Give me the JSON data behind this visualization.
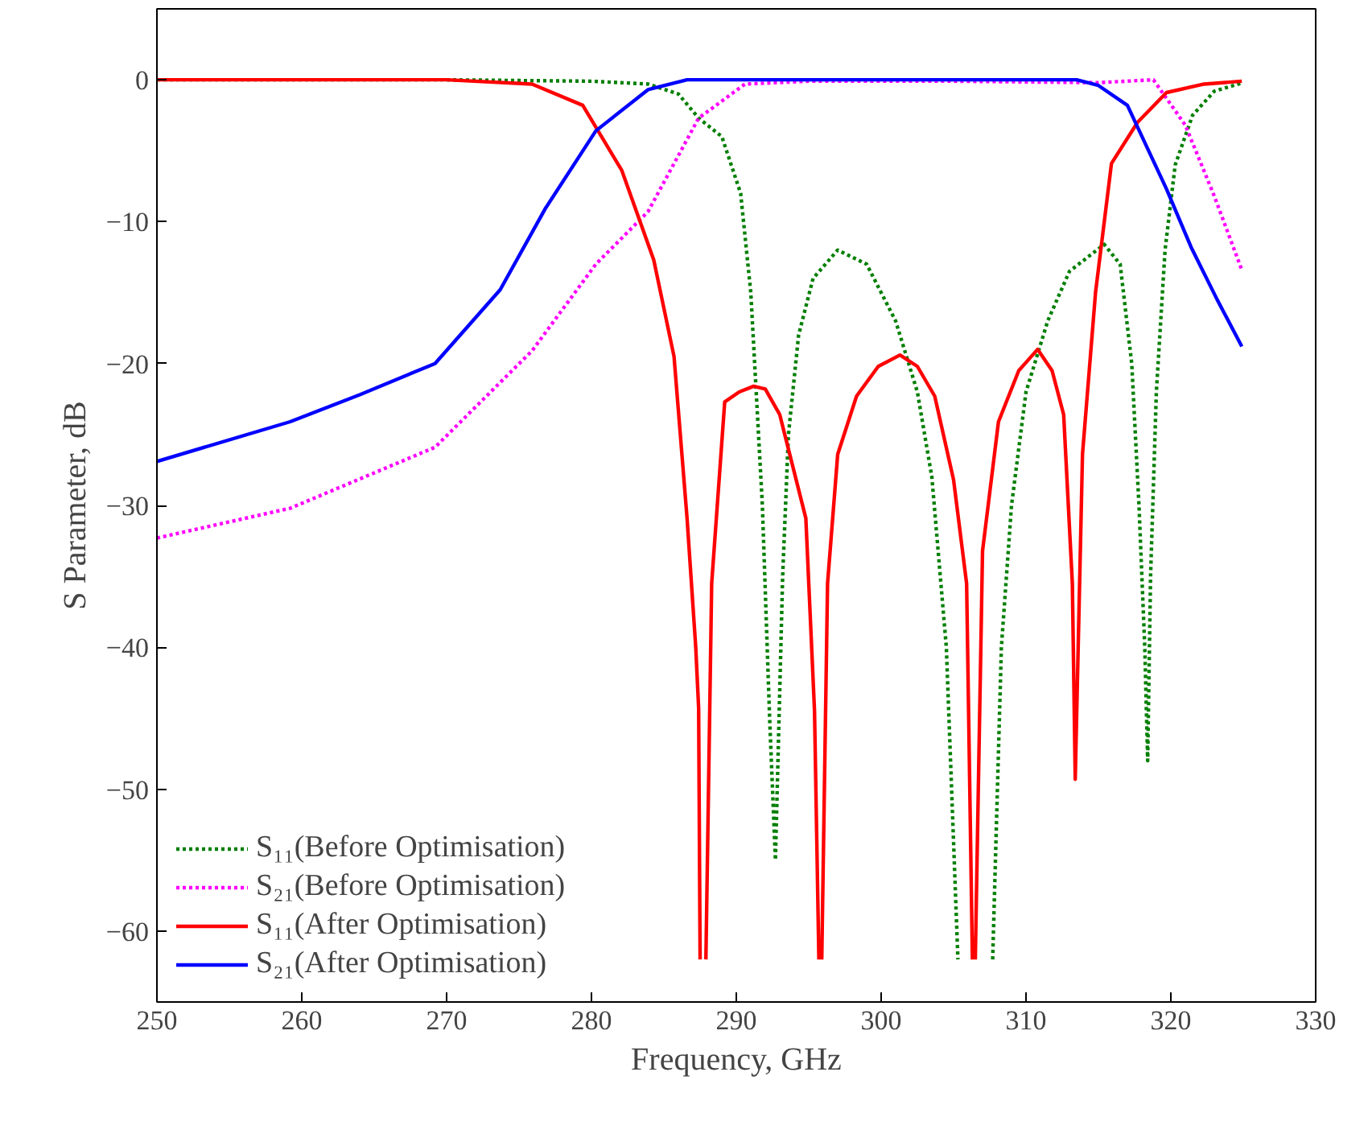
{
  "chart_data": {
    "type": "line",
    "xlabel": "Frequency, GHz",
    "ylabel": "S Parameter, dB",
    "xlim": [
      250,
      330
    ],
    "xticks": [
      250,
      260,
      270,
      280,
      290,
      300,
      310,
      320,
      330
    ],
    "ylim": [
      -65,
      5
    ],
    "yticks": [
      0,
      -10,
      -20,
      -30,
      -40,
      -50,
      -60
    ],
    "grid": false,
    "legend": "bottom left",
    "marker": "none",
    "series": [
      {
        "name": "S₁₁(Before Optimisation)",
        "color": "#007f00",
        "line_style": "dotted",
        "x": [
          250,
          270,
          280,
          283.9,
          286,
          287.4,
          289,
          290.3,
          291,
          291.8,
          292.3,
          292.7,
          293.2,
          293.6,
          294.3,
          295.3,
          297,
          299,
          301,
          302.5,
          303.5,
          304.5,
          305.3,
          306.5,
          307.7,
          308.3,
          309,
          310,
          311.5,
          313,
          315.4,
          316.5,
          317.3,
          317.8,
          318.2,
          318.4,
          318.6,
          319,
          319.6,
          320.3,
          321.5,
          323,
          325
        ],
        "values": [
          0,
          0,
          -0.1,
          -0.3,
          -1,
          -2.7,
          -4,
          -8,
          -15,
          -30,
          -45,
          -55,
          -35,
          -25,
          -18,
          -14,
          -12,
          -13,
          -17,
          -22,
          -28,
          -40,
          -62,
          null,
          -62,
          -40,
          -30,
          -22,
          -17,
          -13.5,
          -11.6,
          -13,
          -20,
          -30,
          -40,
          -48,
          -35,
          -22,
          -12,
          -6,
          -2.5,
          -0.8,
          -0.2
        ]
      },
      {
        "name": "S₂₁(Before Optimisation)",
        "color": "#ff00ff",
        "line_style": "dotted",
        "x": [
          250,
          259.2,
          269.2,
          275.9,
          280.3,
          283.9,
          287.4,
          290.6,
          295,
          305,
          315,
          318.8,
          321,
          323,
          324.9
        ],
        "values": [
          -32.3,
          -30.2,
          -25.9,
          -19.1,
          -13,
          -9.3,
          -2.7,
          -0.3,
          -0.1,
          -0.1,
          -0.2,
          0,
          -3.2,
          -8.2,
          -13.4
        ]
      },
      {
        "name": "S₁₁(After Optimisation)",
        "color": "#ff0000",
        "line_style": "solid",
        "x": [
          250,
          270,
          275.9,
          279.4,
          282.1,
          284.3,
          285.7,
          286.6,
          287.2,
          287.4,
          287.5,
          287.7,
          287.9,
          288.3,
          289.2,
          290.2,
          291.2,
          292,
          293,
          294.8,
          295.4,
          295.7,
          295.8,
          295.9,
          296.3,
          297,
          298.3,
          299.8,
          301.3,
          302.5,
          303.7,
          305,
          305.9,
          306.3,
          306.4,
          306.5,
          307,
          308.1,
          309.5,
          310.8,
          311.8,
          312.6,
          313.2,
          313.4,
          313.9,
          314.8,
          315.9,
          317.7,
          319.7,
          322.3,
          324.9
        ],
        "values": [
          0,
          0,
          -0.3,
          -1.8,
          -6.4,
          -12.7,
          -19.5,
          -30.9,
          -40,
          -44.3,
          -62,
          null,
          -62,
          -35.5,
          -22.7,
          -22,
          -21.6,
          -21.8,
          -23.6,
          -30.9,
          -44.5,
          -62,
          null,
          -62,
          -35.5,
          -26.4,
          -22.3,
          -20.2,
          -19.4,
          -20.2,
          -22.3,
          -28.2,
          -35.5,
          -62,
          null,
          -62,
          -33.2,
          -24.1,
          -20.5,
          -19,
          -20.5,
          -23.6,
          -35.5,
          -49.3,
          -26.4,
          -15,
          -5.9,
          -3,
          -0.9,
          -0.3,
          -0.1
        ]
      },
      {
        "name": "S₂₁(After Optimisation)",
        "color": "#0000ff",
        "line_style": "solid",
        "x": [
          250,
          259.2,
          264,
          269.2,
          273.7,
          276.8,
          280.3,
          283.9,
          286.6,
          300,
          313.5,
          315,
          317,
          319.7,
          321.4,
          323.2,
          324.9
        ],
        "values": [
          -26.9,
          -24.1,
          -22.2,
          -20,
          -14.8,
          -9.1,
          -3.6,
          -0.7,
          0,
          0,
          0,
          -0.4,
          -1.8,
          -7.7,
          -11.8,
          -15.5,
          -18.8
        ]
      }
    ]
  }
}
